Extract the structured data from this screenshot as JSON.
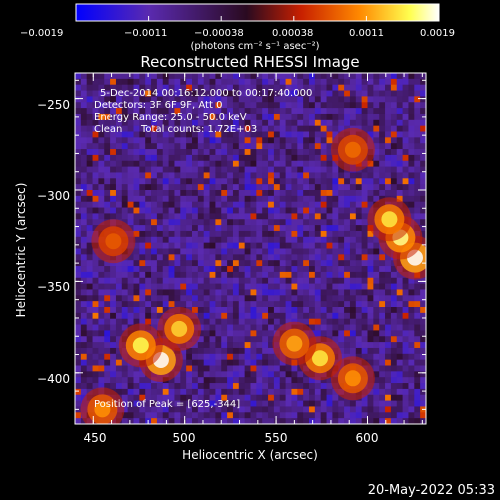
{
  "chart_data": {
    "type": "heatmap",
    "title": "Reconstructed RHESSI Image",
    "xlabel": "Heliocentric X (arcsec)",
    "ylabel": "Heliocentric Y (arcsec)",
    "xlim": [
      440,
      632
    ],
    "ylim": [
      -428,
      -236
    ],
    "x_ticks": [
      "450",
      "500",
      "550",
      "600"
    ],
    "y_ticks": [
      "−250",
      "−300",
      "−350",
      "−400"
    ],
    "x_tick_values": [
      450,
      500,
      550,
      600
    ],
    "y_tick_values": [
      -250,
      -300,
      -350,
      -400
    ],
    "colorbar": {
      "unit_label": "(photons cm⁻² s⁻¹ asec⁻²)",
      "tick_labels": [
        "−0.0019",
        "−0.0011",
        "−0.00038",
        "0.00038",
        "0.0011",
        "0.0019"
      ],
      "range": [
        -0.0019,
        0.0019
      ],
      "colors": [
        "#0000ff",
        "#5a2ab0",
        "#2a0a20",
        "#c82000",
        "#ff8800",
        "#ffff50",
        "#ffffff"
      ]
    },
    "annotations": {
      "line1": "5-Dec-2014 00:16:12.000 to 00:17:40.000",
      "line2": "Detectors: 3F 6F 9F, Att 0",
      "line3": "Energy Range: 25.0 - 50.0 keV",
      "line4_a": "Clean",
      "line4_b": "Total counts: 1.72E+03",
      "peak": "Position of Peak = [625,-344]"
    },
    "hot_spots": [
      {
        "x": 487,
        "y": -393,
        "strength": 0.0019
      },
      {
        "x": 476,
        "y": -385,
        "strength": 0.0016
      },
      {
        "x": 497,
        "y": -376,
        "strength": 0.0014
      },
      {
        "x": 574,
        "y": -392,
        "strength": 0.0015
      },
      {
        "x": 560,
        "y": -384,
        "strength": 0.0012
      },
      {
        "x": 592,
        "y": -403,
        "strength": 0.0011
      },
      {
        "x": 626,
        "y": -337,
        "strength": 0.0019
      },
      {
        "x": 618,
        "y": -326,
        "strength": 0.0017
      },
      {
        "x": 612,
        "y": -316,
        "strength": 0.0015
      },
      {
        "x": 455,
        "y": -420,
        "strength": 0.0011
      },
      {
        "x": 592,
        "y": -278,
        "strength": 0.0009
      },
      {
        "x": 461,
        "y": -328,
        "strength": 0.0008
      }
    ]
  },
  "footer": {
    "timestamp": "20-May-2022 05:33"
  }
}
